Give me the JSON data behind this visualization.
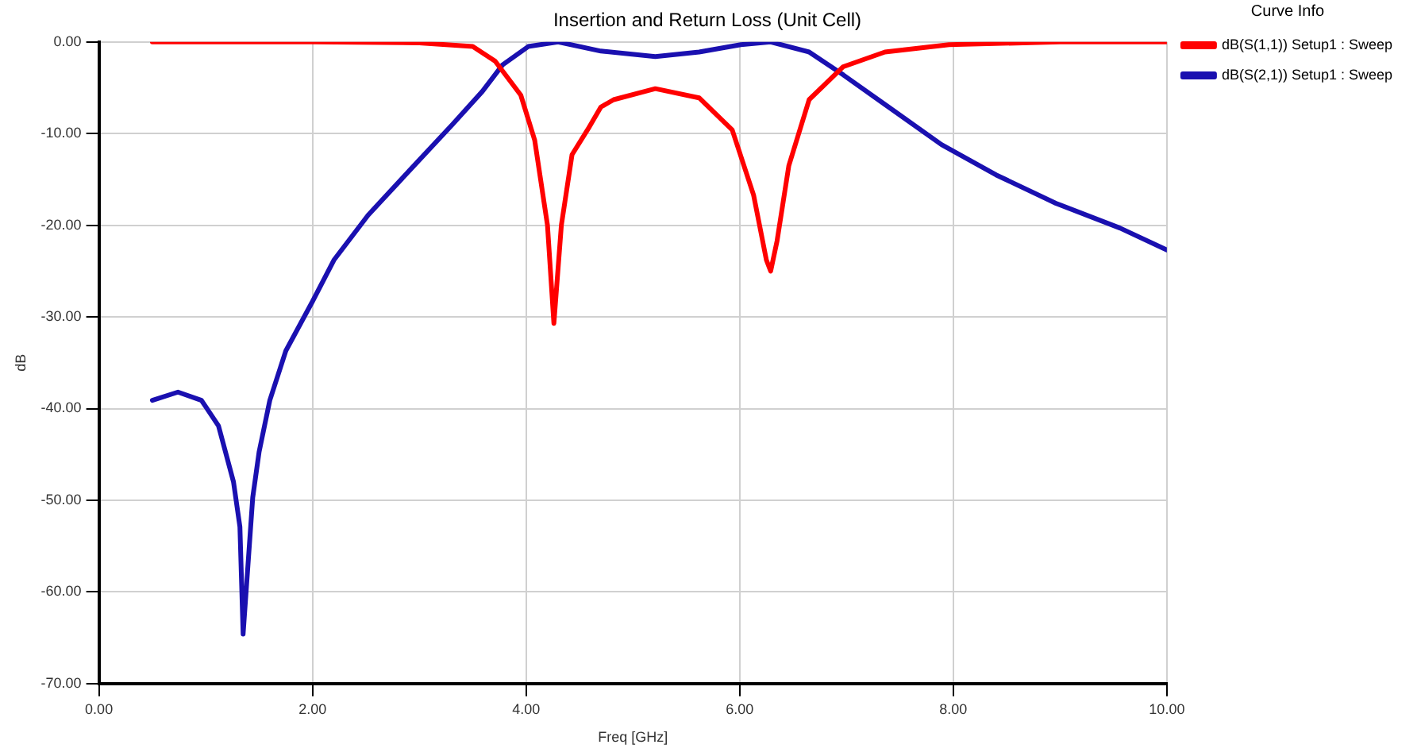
{
  "chart_data": {
    "type": "line",
    "title": "Insertion and Return Loss (Unit Cell)",
    "xlabel": "Freq [GHz]",
    "ylabel": "dB",
    "legend_title": "Curve Info",
    "xlim": [
      0,
      10
    ],
    "ylim": [
      -70,
      0
    ],
    "xticks": [
      {
        "value": 0,
        "label": "0.00"
      },
      {
        "value": 2,
        "label": "2.00"
      },
      {
        "value": 4,
        "label": "4.00"
      },
      {
        "value": 6,
        "label": "6.00"
      },
      {
        "value": 8,
        "label": "8.00"
      },
      {
        "value": 10,
        "label": "10.00"
      }
    ],
    "yticks": [
      {
        "value": -70,
        "label": "-70.00"
      },
      {
        "value": -60,
        "label": "-60.00"
      },
      {
        "value": -50,
        "label": "-50.00"
      },
      {
        "value": -40,
        "label": "-40.00"
      },
      {
        "value": -30,
        "label": "-30.00"
      },
      {
        "value": -20,
        "label": "-20.00"
      },
      {
        "value": -10,
        "label": "-10.00"
      },
      {
        "value": 0,
        "label": "0.00"
      }
    ],
    "grid": true,
    "legend": "right",
    "marker": "none",
    "line_style": "solid",
    "series": [
      {
        "name": "dB(S(1,1)) Setup1 : Sweep",
        "color": "#ff0000",
        "x": [
          0.5,
          2.0,
          3.0,
          3.5,
          3.71,
          3.95,
          4.08,
          4.2,
          4.26,
          4.33,
          4.43,
          4.58,
          4.7,
          4.82,
          5.21,
          5.62,
          5.93,
          6.13,
          6.25,
          6.29,
          6.35,
          6.46,
          6.65,
          6.97,
          7.36,
          7.96,
          9.0,
          10.0
        ],
        "values": [
          0,
          0,
          -0.1,
          -0.5,
          -2.1,
          -5.8,
          -10.7,
          -20,
          -30.7,
          -20,
          -12.3,
          -9.5,
          -7.1,
          -6.3,
          -5.1,
          -6.1,
          -9.6,
          -16.7,
          -23.8,
          -25,
          -21.7,
          -13.5,
          -6.3,
          -2.7,
          -1.1,
          -0.3,
          0,
          0
        ]
      },
      {
        "name": "dB(S(2,1)) Setup1 : Sweep",
        "color": "#1a10b0",
        "x": [
          0.5,
          0.74,
          0.96,
          1.12,
          1.26,
          1.32,
          1.35,
          1.44,
          1.5,
          1.6,
          1.75,
          2.0,
          2.2,
          2.52,
          2.91,
          3.31,
          3.59,
          3.78,
          4.02,
          4.3,
          4.7,
          5.21,
          5.62,
          6.01,
          6.29,
          6.65,
          6.97,
          7.37,
          7.89,
          8.4,
          8.96,
          9.56,
          10.0
        ],
        "values": [
          -39.1,
          -38.2,
          -39.1,
          -41.9,
          -48,
          -52.9,
          -64.6,
          -49.7,
          -44.7,
          -39.1,
          -33.7,
          -28.3,
          -23.8,
          -18.9,
          -14,
          -9,
          -5.4,
          -2.5,
          -0.5,
          0,
          -1.0,
          -1.6,
          -1.1,
          -0.3,
          0,
          -1.1,
          -3.6,
          -6.9,
          -11.2,
          -14.5,
          -17.6,
          -20.3,
          -22.7
        ]
      }
    ]
  }
}
